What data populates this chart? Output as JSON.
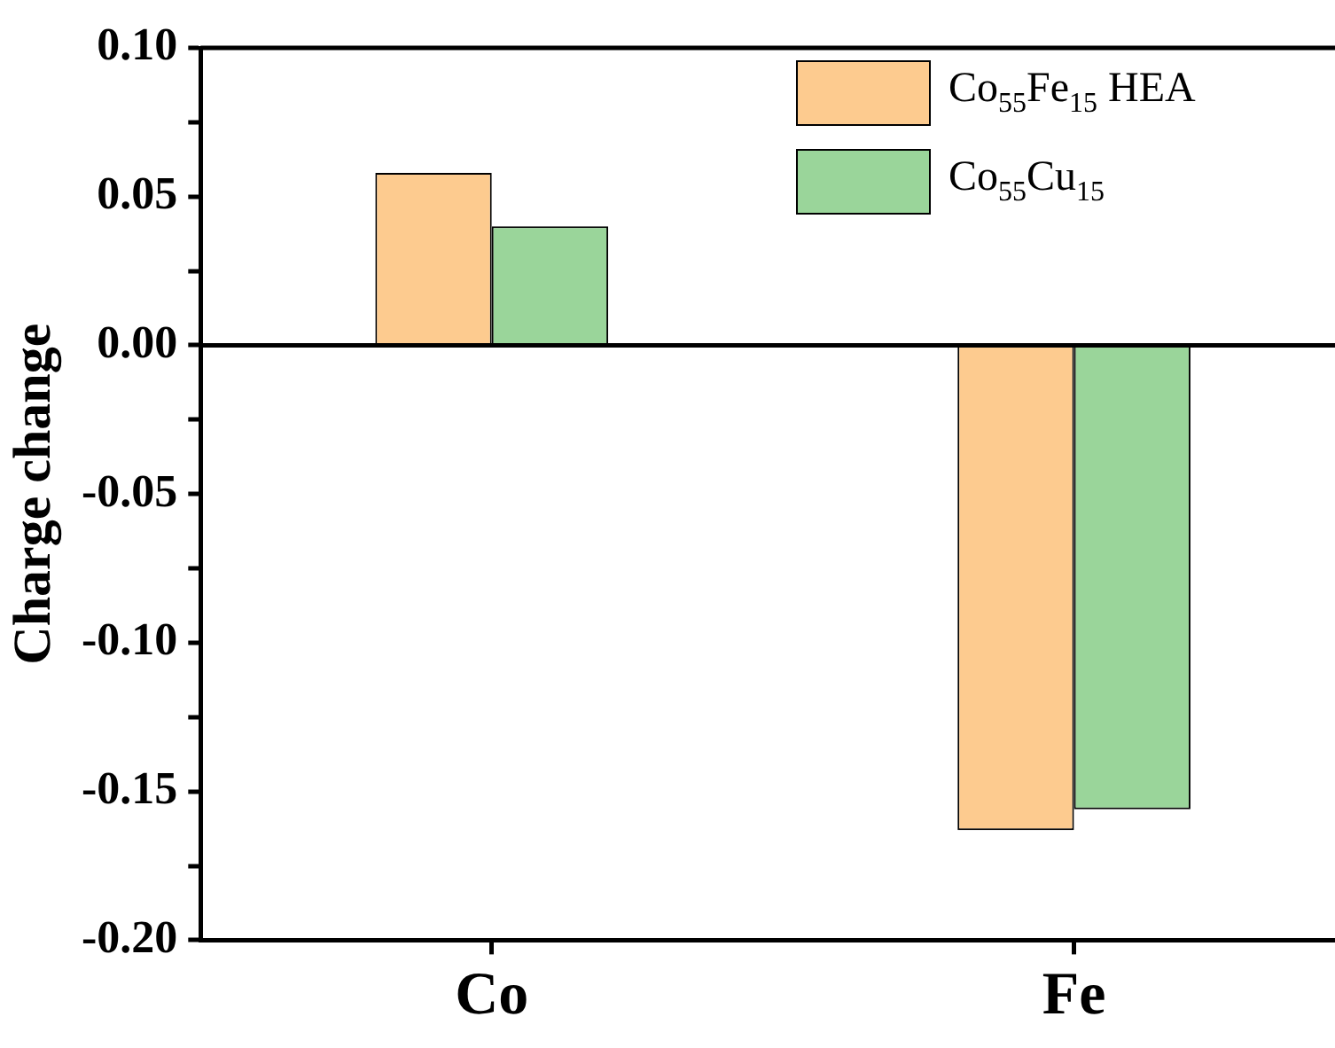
{
  "chart_data": {
    "type": "bar",
    "ylabel": "Charge change",
    "categories": [
      "Co",
      "Fe"
    ],
    "series": [
      {
        "name": "Co$_{55}$Fe$_{15}$ HEA",
        "color": "#fdcb8f",
        "values": [
          0.058,
          -0.163
        ]
      },
      {
        "name": "Co$_{55}$Cu$_{15}$",
        "color": "#9ad59a",
        "values": [
          0.04,
          -0.156
        ]
      }
    ],
    "ylim": [
      -0.2,
      0.1
    ],
    "yticks": [
      {
        "value": -0.2,
        "label": "-0.20"
      },
      {
        "value": -0.175,
        "label": null
      },
      {
        "value": -0.15,
        "label": "-0.15"
      },
      {
        "value": -0.125,
        "label": null
      },
      {
        "value": -0.1,
        "label": "-0.10"
      },
      {
        "value": -0.075,
        "label": null
      },
      {
        "value": -0.05,
        "label": "-0.05"
      },
      {
        "value": -0.025,
        "label": null
      },
      {
        "value": 0,
        "label": "0.00"
      },
      {
        "value": 0.025,
        "label": null
      },
      {
        "value": 0.05,
        "label": "0.05"
      },
      {
        "value": 0.075,
        "label": null
      },
      {
        "value": 0.1,
        "label": "0.10"
      }
    ],
    "ref_lines": [
      {
        "axis": "y",
        "value": 0
      }
    ],
    "legend": "top right",
    "grid": false
  }
}
